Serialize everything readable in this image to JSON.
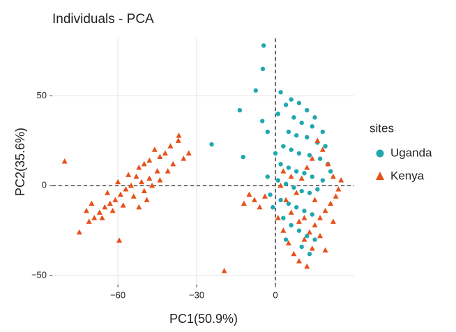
{
  "chart_data": {
    "type": "scatter",
    "title": "Individuals - PCA",
    "x_label": "PC1(50.9%)",
    "y_label": "PC2(35.6%)",
    "xlim": [
      -85,
      30
    ],
    "ylim": [
      -55,
      82
    ],
    "xticks": [
      {
        "value": -60,
        "label": "−60"
      },
      {
        "value": -30,
        "label": "−30"
      },
      0
    ],
    "yticks": [
      {
        "value": -50,
        "label": "−50"
      },
      0,
      50
    ],
    "grid": true,
    "hline": 0,
    "vline": 0,
    "legend_title": "sites",
    "legend": "right",
    "series": [
      {
        "name": "Uganda",
        "color": "#1fa8b0",
        "marker": "circle",
        "x": [
          -4.5,
          -4.8,
          -7.5,
          -13.6,
          -24.3,
          2,
          -12.3,
          -5,
          -3,
          1,
          4,
          6,
          9,
          12,
          15,
          18,
          7,
          10,
          14,
          5,
          8,
          12,
          16,
          3,
          6,
          9,
          13,
          17,
          20,
          2,
          5,
          8,
          11,
          14,
          18,
          1,
          4,
          7,
          10,
          13,
          16,
          -2,
          2,
          5,
          8,
          11,
          14,
          3,
          6,
          9,
          12,
          15,
          10,
          13,
          4,
          -1,
          0,
          19,
          21,
          -3
        ],
        "y": [
          78,
          65,
          53,
          42,
          23,
          52,
          16,
          36,
          30,
          40,
          45,
          48,
          46,
          42,
          38,
          30,
          38,
          35,
          33,
          30,
          28,
          27,
          24,
          22,
          20,
          18,
          17,
          15,
          12,
          12,
          10,
          8,
          7,
          5,
          3,
          3,
          1,
          -1,
          -3,
          -4,
          -2,
          -5,
          -8,
          -10,
          -12,
          -14,
          -16,
          -18,
          -22,
          -25,
          -28,
          -30,
          -34,
          -38,
          -30,
          -12,
          18,
          22,
          8,
          5
        ]
      },
      {
        "name": "Kenya",
        "color": "#e8501a",
        "marker": "triangle",
        "x": [
          -80.3,
          -74.7,
          -59.5,
          -36.8,
          -37,
          -40,
          -42,
          -44,
          -46,
          -48,
          -50,
          -52,
          -45,
          -48,
          -51,
          -53,
          -55,
          -57,
          -59,
          -61,
          -63,
          -65,
          -67,
          -69,
          -71,
          -72,
          -70,
          -66,
          -62,
          -58,
          -54,
          -50,
          -47,
          -44,
          -41,
          -39,
          -35,
          -33,
          -56,
          -60,
          -64,
          -52,
          -49,
          -19.5,
          -10,
          -8,
          -6,
          -12,
          -4,
          1,
          3,
          5,
          7,
          9,
          11,
          13,
          15,
          17,
          19,
          21,
          23,
          24,
          22,
          20,
          18,
          16,
          14,
          12,
          10,
          8,
          6,
          4,
          2,
          6,
          9,
          14,
          17,
          19,
          12,
          22,
          25,
          15,
          11,
          3
        ],
        "y": [
          13.5,
          -26,
          -30.5,
          27.8,
          25,
          22,
          18,
          16,
          20,
          14,
          12,
          10,
          8,
          4,
          2,
          5,
          0,
          -2,
          -5,
          -8,
          -10,
          -12,
          -15,
          -18,
          -20,
          -14,
          -10,
          -18,
          -14,
          -11,
          -6,
          -3,
          0,
          3,
          8,
          12,
          15,
          18,
          6,
          2,
          -4,
          -12,
          -8,
          -47.5,
          -5,
          -8,
          -12,
          -10,
          -6,
          -18,
          -25,
          -32,
          -38,
          -42,
          -30,
          -26,
          -22,
          -18,
          -14,
          -10,
          -6,
          -2,
          5,
          12,
          20,
          25,
          15,
          10,
          4,
          -4,
          -15,
          -8,
          0,
          5,
          -20,
          -35,
          -28,
          -36,
          -45,
          -20,
          3,
          -8,
          -18,
          8
        ]
      }
    ]
  }
}
